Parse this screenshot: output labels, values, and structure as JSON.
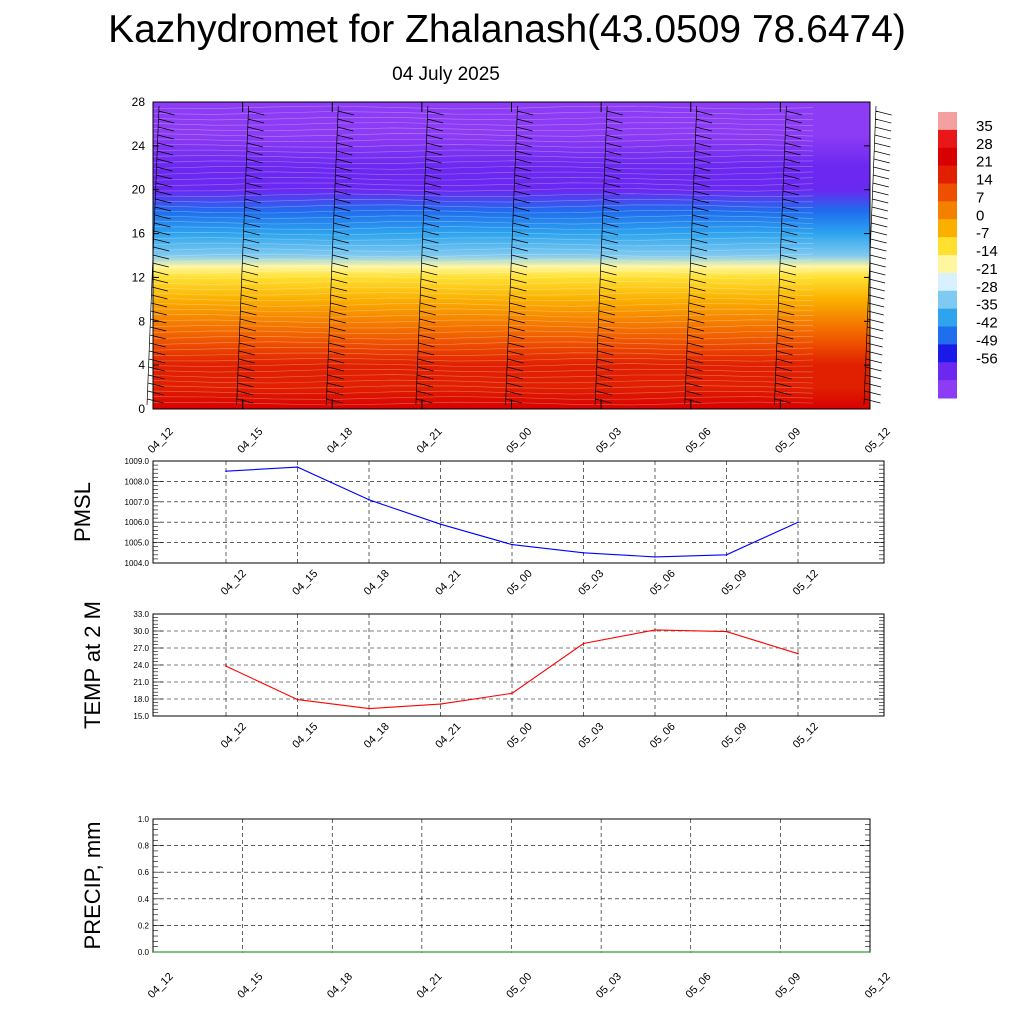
{
  "title": "Kazhydromet for Zhalanash(43.0509 78.6474)",
  "date": "04 July 2025",
  "chart_data": [
    {
      "type": "heatmap",
      "name": "temperature-cross-section",
      "x_ticks": [
        "04_12",
        "04_15",
        "04_18",
        "04_21",
        "05_00",
        "05_03",
        "05_06",
        "05_09",
        "05_12"
      ],
      "y_ticks": [
        0,
        4,
        8,
        12,
        16,
        20,
        24,
        28
      ],
      "ylim": [
        0,
        28
      ],
      "colorbar_labels": [
        "35",
        "28",
        "21",
        "14",
        "7",
        "0",
        "-7",
        "-14",
        "-21",
        "-28",
        "-35",
        "-42",
        "-49",
        "-56"
      ],
      "colorbar_colors": [
        "#f5a0a0",
        "#e81818",
        "#d80000",
        "#e02000",
        "#ee5000",
        "#f58000",
        "#fbb000",
        "#ffe030",
        "#fff6a0",
        "#d8f0ff",
        "#7fcaf0",
        "#2ea4ee",
        "#1e6eee",
        "#1a1ae8",
        "#6a28f0",
        "#8c3cf4"
      ],
      "profile": [
        {
          "h": 0,
          "t": 30
        },
        {
          "h": 2,
          "t": 24
        },
        {
          "h": 4,
          "t": 18
        },
        {
          "h": 6,
          "t": 12
        },
        {
          "h": 8,
          "t": 6
        },
        {
          "h": 10,
          "t": 0
        },
        {
          "h": 12,
          "t": -8
        },
        {
          "h": 13,
          "t": -17
        },
        {
          "h": 14,
          "t": -26
        },
        {
          "h": 16,
          "t": -34
        },
        {
          "h": 18,
          "t": -44
        },
        {
          "h": 20,
          "t": -55
        },
        {
          "h": 22,
          "t": -57
        },
        {
          "h": 25,
          "t": -60
        },
        {
          "h": 28,
          "t": -62
        }
      ]
    },
    {
      "type": "line",
      "name": "pmsl",
      "ylabel": "PMSL",
      "categories": [
        "04_12",
        "04_15",
        "04_18",
        "04_21",
        "05_00",
        "05_03",
        "05_06",
        "05_09",
        "05_12"
      ],
      "values": [
        1008.5,
        1008.7,
        1007.1,
        1005.9,
        1004.9,
        1004.5,
        1004.3,
        1004.4,
        1006.0
      ],
      "ylim": [
        1004.0,
        1009.0
      ],
      "y_ticks": [
        "1004.0",
        "1005.0",
        "1006.0",
        "1007.0",
        "1008.0",
        "1009.0"
      ],
      "color": "#0000ff"
    },
    {
      "type": "line",
      "name": "temp-2m",
      "ylabel": "TEMP at 2 M",
      "categories": [
        "04_12",
        "04_15",
        "04_18",
        "04_21",
        "05_00",
        "05_03",
        "05_06",
        "05_09",
        "05_12"
      ],
      "values": [
        23.8,
        17.9,
        16.3,
        17.1,
        19.0,
        27.8,
        30.2,
        29.9,
        26.0
      ],
      "ylim": [
        15.0,
        33.0
      ],
      "y_ticks": [
        "15.0",
        "18.0",
        "21.0",
        "24.0",
        "27.0",
        "30.0",
        "33.0"
      ],
      "color": "#ff0000"
    },
    {
      "type": "line",
      "name": "precip",
      "ylabel": "PRECIP, mm",
      "categories": [
        "04_12",
        "04_15",
        "04_18",
        "04_21",
        "05_00",
        "05_03",
        "05_06",
        "05_09",
        "05_12"
      ],
      "values": [
        0,
        0,
        0,
        0,
        0,
        0,
        0,
        0,
        0
      ],
      "ylim": [
        0.0,
        1.0
      ],
      "y_ticks": [
        "0.0",
        "0.2",
        "0.4",
        "0.6",
        "0.8",
        "1.0"
      ],
      "color": "#008000"
    }
  ]
}
